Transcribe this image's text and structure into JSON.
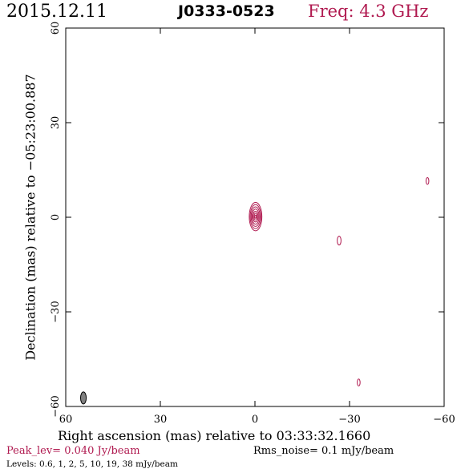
{
  "header": {
    "date": "2015.12.11",
    "source": "J0333-0523",
    "freq": "Freq: 4.3 GHz"
  },
  "footer": {
    "peak": "Peak_lev=  0.040 Jy/beam",
    "rms": "Rms_noise=   0.1 mJy/beam",
    "levels": "Levels: 0.6,    1,    2,    5,   10,   19,   38 mJy/beam"
  },
  "colors": {
    "contour": "#b01a50",
    "beam_fill": "#808080"
  },
  "chart_data": {
    "type": "contour",
    "xlabel": "Right ascension (mas) relative to 03:33:32.1660",
    "ylabel": "Declination (mas) relative to −05:23:00.887",
    "xlim": [
      60,
      -60
    ],
    "ylim": [
      -60,
      60
    ],
    "x_ticks": [
      60,
      30,
      0,
      -30,
      -60
    ],
    "x_tick_labels": [
      "60",
      "30",
      "0",
      "−30",
      "−60"
    ],
    "y_ticks": [
      -60,
      -30,
      0,
      30,
      60
    ],
    "y_tick_labels": [
      "−60",
      "−30",
      "0",
      "30",
      "60"
    ],
    "contour_levels_mJy": [
      0.6,
      1,
      2,
      5,
      10,
      19,
      38
    ],
    "core": {
      "x": -0.2,
      "y": 0.2,
      "rings": [
        {
          "rx": 2.0,
          "ry": 4.5
        },
        {
          "rx": 1.7,
          "ry": 3.8
        },
        {
          "rx": 1.4,
          "ry": 3.1
        },
        {
          "rx": 1.1,
          "ry": 2.4
        },
        {
          "rx": 0.8,
          "ry": 1.7
        },
        {
          "rx": 0.5,
          "ry": 1.1
        },
        {
          "rx": 0.25,
          "ry": 0.5
        }
      ]
    },
    "features": [
      {
        "x": -26.7,
        "y": -7.4,
        "rx": 0.6,
        "ry": 1.4
      },
      {
        "x": -54.7,
        "y": 11.5,
        "rx": 0.45,
        "ry": 1.1
      },
      {
        "x": -32.9,
        "y": -52.4,
        "rx": 0.45,
        "ry": 1.1
      }
    ],
    "beam": {
      "x": 54.4,
      "y": -57.3,
      "rx": 0.9,
      "ry": 1.9
    }
  }
}
